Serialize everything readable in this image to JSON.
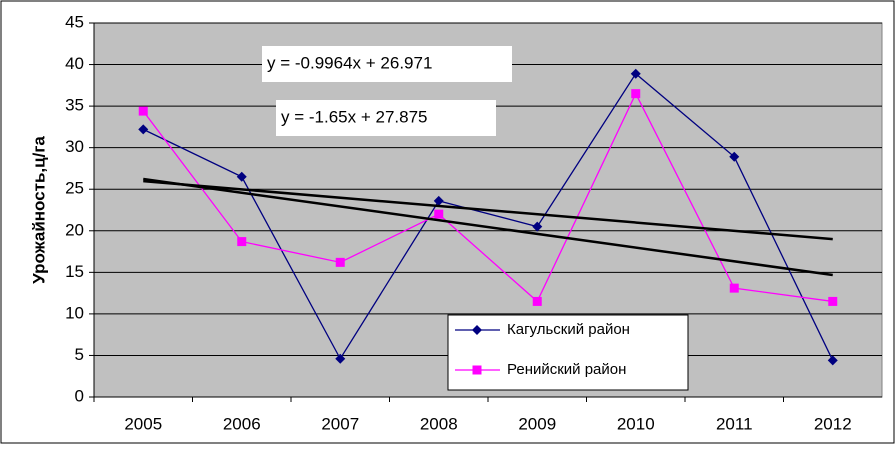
{
  "chart_data": {
    "type": "line",
    "y_label": "Урожайность,ц/га",
    "categories": [
      "2005",
      "2006",
      "2007",
      "2008",
      "2009",
      "2010",
      "2011",
      "2012"
    ],
    "series": [
      {
        "name": "Кагульский район",
        "color": "#000080",
        "marker": "diamond",
        "values": [
          32.2,
          26.5,
          4.6,
          23.6,
          20.5,
          38.9,
          28.9,
          4.4
        ]
      },
      {
        "name": "Ренийский район",
        "color": "#ff00ff",
        "marker": "square",
        "values": [
          34.4,
          18.7,
          16.2,
          22.0,
          11.5,
          36.5,
          13.1,
          11.5
        ]
      }
    ],
    "trendlines": [
      {
        "slope": -0.9964,
        "intercept": 26.971,
        "label": "y = -0.9964x + 26.971",
        "color": "#000000"
      },
      {
        "slope": -1.65,
        "intercept": 27.875,
        "label": "y = -1.65x + 27.875",
        "color": "#000000"
      }
    ],
    "ylim": [
      0,
      45
    ],
    "yticks": [
      0,
      5,
      10,
      15,
      20,
      25,
      30,
      35,
      40,
      45
    ],
    "grid": true,
    "plot_background": "#c0c0c0",
    "legend": "bottom"
  }
}
